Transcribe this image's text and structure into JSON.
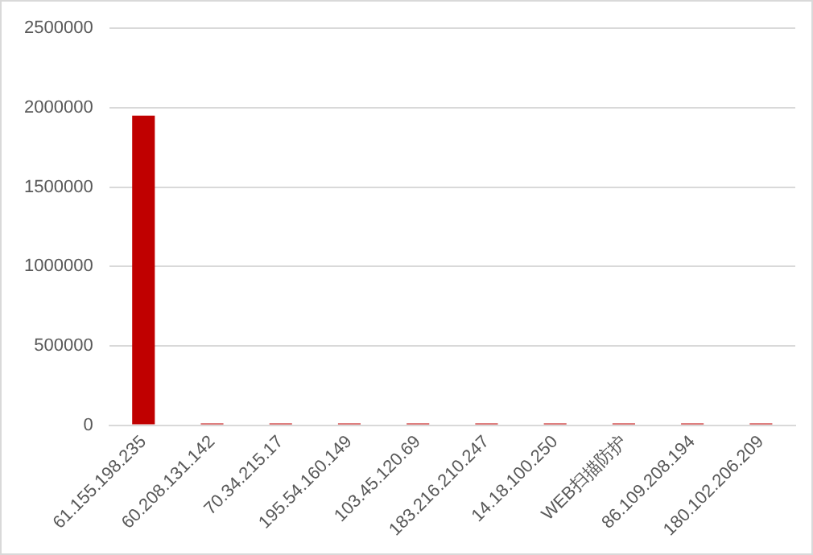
{
  "chart_data": {
    "type": "bar",
    "categories": [
      "61.155.198.235",
      "60.208.131.142",
      "70.34.215.17",
      "195.54.160.149",
      "103.45.120.69",
      "183.216.210.247",
      "14.18.100.250",
      "WEB扫描防护",
      "86.109.208.194",
      "180.102.206.209"
    ],
    "values": [
      1950000,
      10000,
      10000,
      10000,
      10000,
      10000,
      10000,
      10000,
      10000,
      10000
    ],
    "color": "#c00000",
    "ylim": [
      0,
      2500000
    ],
    "yticks": [
      0,
      500000,
      1000000,
      1500000,
      2000000,
      2500000
    ],
    "grid": "y",
    "legend": false
  }
}
